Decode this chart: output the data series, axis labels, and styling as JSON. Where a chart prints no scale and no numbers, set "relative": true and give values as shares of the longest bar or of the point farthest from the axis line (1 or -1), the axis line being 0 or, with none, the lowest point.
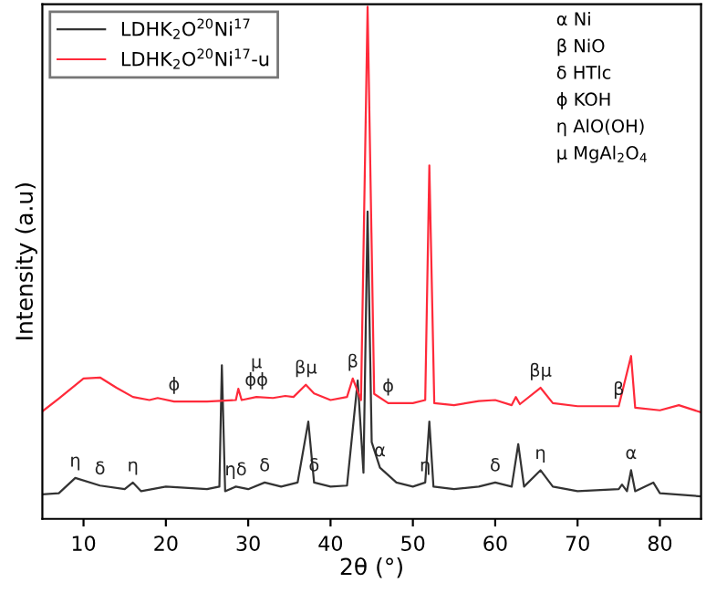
{
  "chart_data": {
    "type": "line",
    "relative": true,
    "xlabel": "2θ (°)",
    "ylabel": "Intensity (a.u)",
    "xlim": [
      5,
      85
    ],
    "xticks": [
      10,
      20,
      30,
      40,
      50,
      60,
      70,
      80
    ],
    "legend": "top left",
    "grid": false,
    "marker": "none",
    "line_style": "solid",
    "series": [
      {
        "name": "LDHK$_{2}$O$^{20}$Ni$^{17}$",
        "color": "#333333",
        "x": [
          5,
          7,
          9,
          12,
          15,
          16,
          17,
          20,
          25,
          26.5,
          26.8,
          27.2,
          28.5,
          30,
          32,
          34,
          36,
          37.3,
          38,
          40,
          42,
          43.3,
          44,
          44.5,
          45,
          46,
          48,
          50,
          51.5,
          52,
          52.5,
          55,
          58,
          60,
          62,
          62.8,
          63.5,
          65.5,
          67,
          70,
          75,
          75.4,
          76,
          76.5,
          77,
          79.2,
          80,
          85
        ],
        "values": [
          0.048,
          0.05,
          0.08,
          0.065,
          0.058,
          0.071,
          0.054,
          0.063,
          0.058,
          0.063,
          0.3,
          0.054,
          0.063,
          0.058,
          0.071,
          0.063,
          0.071,
          0.19,
          0.071,
          0.063,
          0.065,
          0.27,
          0.09,
          0.6,
          0.15,
          0.1,
          0.071,
          0.063,
          0.071,
          0.19,
          0.063,
          0.058,
          0.063,
          0.071,
          0.063,
          0.146,
          0.063,
          0.095,
          0.063,
          0.054,
          0.058,
          0.067,
          0.054,
          0.095,
          0.054,
          0.071,
          0.05,
          0.044
        ]
      },
      {
        "name": "LDHK$_{2}$O$^{20}$Ni$^{17}$-u",
        "color": "#ff2a3a",
        "x": [
          5,
          7,
          10,
          12,
          14,
          16,
          18,
          19,
          21,
          25,
          28.5,
          28.8,
          29.2,
          31,
          33,
          34.5,
          35.5,
          37,
          38,
          40,
          42,
          42.7,
          43.7,
          44.5,
          45.3,
          47,
          50,
          51.5,
          52,
          52.6,
          55,
          58,
          60,
          62,
          62.5,
          63,
          65.5,
          67,
          70,
          75,
          76.5,
          77,
          80,
          82.3,
          85
        ],
        "values": [
          0.21,
          0.235,
          0.274,
          0.276,
          0.256,
          0.238,
          0.232,
          0.236,
          0.229,
          0.229,
          0.232,
          0.254,
          0.232,
          0.238,
          0.236,
          0.24,
          0.238,
          0.262,
          0.245,
          0.232,
          0.238,
          0.274,
          0.232,
          1.0,
          0.244,
          0.226,
          0.226,
          0.232,
          0.69,
          0.226,
          0.222,
          0.23,
          0.232,
          0.222,
          0.238,
          0.224,
          0.256,
          0.226,
          0.22,
          0.22,
          0.318,
          0.217,
          0.212,
          0.222,
          0.208
        ]
      }
    ],
    "annotations": [
      "α Ni",
      "β NiO",
      "δ HTlc",
      "ϕ KOH",
      "η AlO(OH)",
      "μ MgAl$_{2}$O$_{4}$",
      {
        "text": "η",
        "x": 9,
        "y": 0.08
      },
      {
        "text": "δ",
        "x": 12,
        "y": 0.065
      },
      {
        "text": "η",
        "x": 16,
        "y": 0.071
      },
      {
        "text": "ηδ",
        "x": 28.5,
        "y": 0.063
      },
      {
        "text": "δ",
        "x": 32,
        "y": 0.071
      },
      {
        "text": "δ",
        "x": 38,
        "y": 0.071
      },
      {
        "text": "α",
        "x": 46,
        "y": 0.1
      },
      {
        "text": "η",
        "x": 51.5,
        "y": 0.071
      },
      {
        "text": "δ",
        "x": 60,
        "y": 0.071
      },
      {
        "text": "η",
        "x": 65.5,
        "y": 0.095
      },
      {
        "text": "α",
        "x": 76.5,
        "y": 0.095
      },
      {
        "text": "ϕ",
        "x": 21,
        "y": 0.229
      },
      {
        "text": "ϕϕ",
        "x": 31,
        "y": 0.238
      },
      {
        "text": "μ",
        "x": 31,
        "y": 0.238
      },
      {
        "text": "βμ",
        "x": 37,
        "y": 0.262
      },
      {
        "text": "β",
        "x": 42.7,
        "y": 0.274
      },
      {
        "text": "ϕ",
        "x": 47,
        "y": 0.226
      },
      {
        "text": "βμ",
        "x": 65.5,
        "y": 0.256
      },
      {
        "text": "β",
        "x": 75,
        "y": 0.22
      }
    ]
  }
}
